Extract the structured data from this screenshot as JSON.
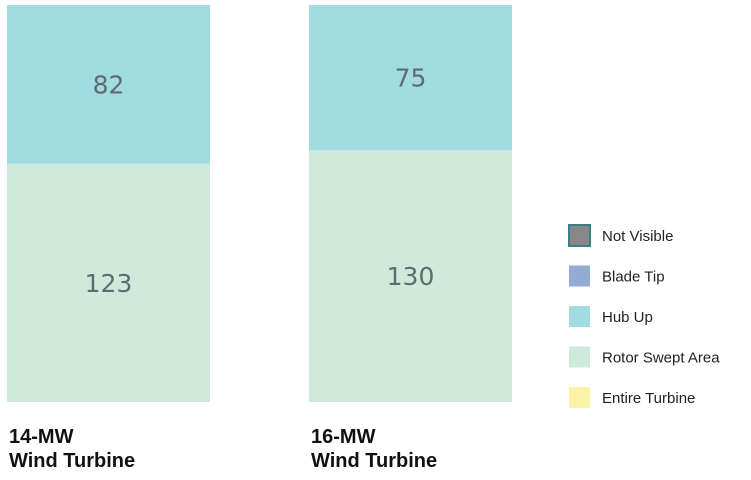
{
  "chart_data": {
    "type": "bar",
    "stacked": true,
    "categories": [
      [
        "14-MW",
        "Wind Turbine"
      ],
      [
        "16-MW",
        "Wind Turbine"
      ]
    ],
    "series": [
      {
        "name": "Not Visible",
        "color": "#888888",
        "values": [
          0,
          0
        ]
      },
      {
        "name": "Blade Tip",
        "color": "#93acd3",
        "values": [
          0,
          0
        ]
      },
      {
        "name": "Hub Up",
        "color": "#a1dce2",
        "values": [
          82,
          75
        ]
      },
      {
        "name": "Rotor Swept Area",
        "color": "#cdeadb",
        "values": [
          123,
          130
        ]
      },
      {
        "name": "Entire Turbine",
        "color": "#fbf4a8",
        "values": [
          0,
          0
        ]
      }
    ],
    "legend": "right",
    "grid": false,
    "title": "",
    "xlabel": "",
    "ylabel": ""
  }
}
